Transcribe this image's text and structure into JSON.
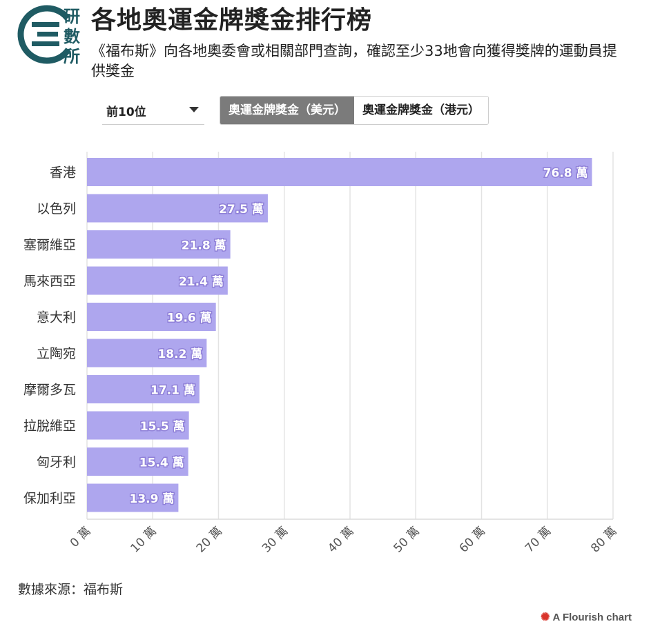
{
  "header": {
    "logo_text": [
      "研",
      "數",
      "所"
    ],
    "title": "各地奧運金牌獎金排行榜",
    "subtitle": "《福布斯》向各地奧委會或相關部門查詢，確認至少33地會向獲得獎牌的運動員提供獎金"
  },
  "controls": {
    "dropdown_value": "前10位",
    "toggle_options": [
      "奧運金牌獎金（美元）",
      "奧運金牌獎金（港元）"
    ],
    "active_option": 0
  },
  "colors": {
    "bar": "#aea6ee",
    "gridline": "#e3e3e3",
    "logo": "#1f5b63"
  },
  "chart_data": {
    "type": "bar",
    "orientation": "horizontal",
    "categories": [
      "香港",
      "以色列",
      "塞爾維亞",
      "馬來西亞",
      "意大利",
      "立陶宛",
      "摩爾多瓦",
      "拉脫維亞",
      "匈牙利",
      "保加利亞"
    ],
    "values": [
      76.8,
      27.5,
      21.8,
      21.4,
      19.6,
      18.2,
      17.1,
      15.5,
      15.4,
      13.9
    ],
    "value_labels": [
      "76.8 萬",
      "27.5 萬",
      "21.8 萬",
      "21.4 萬",
      "19.6 萬",
      "18.2 萬",
      "17.1 萬",
      "15.5 萬",
      "15.4 萬",
      "13.9 萬"
    ],
    "xlim": [
      0,
      80
    ],
    "x_ticks": [
      "0 萬",
      "10 萬",
      "20 萬",
      "30 萬",
      "40 萬",
      "50 萬",
      "60 萬",
      "70 萬",
      "80 萬"
    ],
    "grid": true
  },
  "footer": {
    "source": "數據來源：福布斯",
    "credit": "A Flourish chart"
  }
}
